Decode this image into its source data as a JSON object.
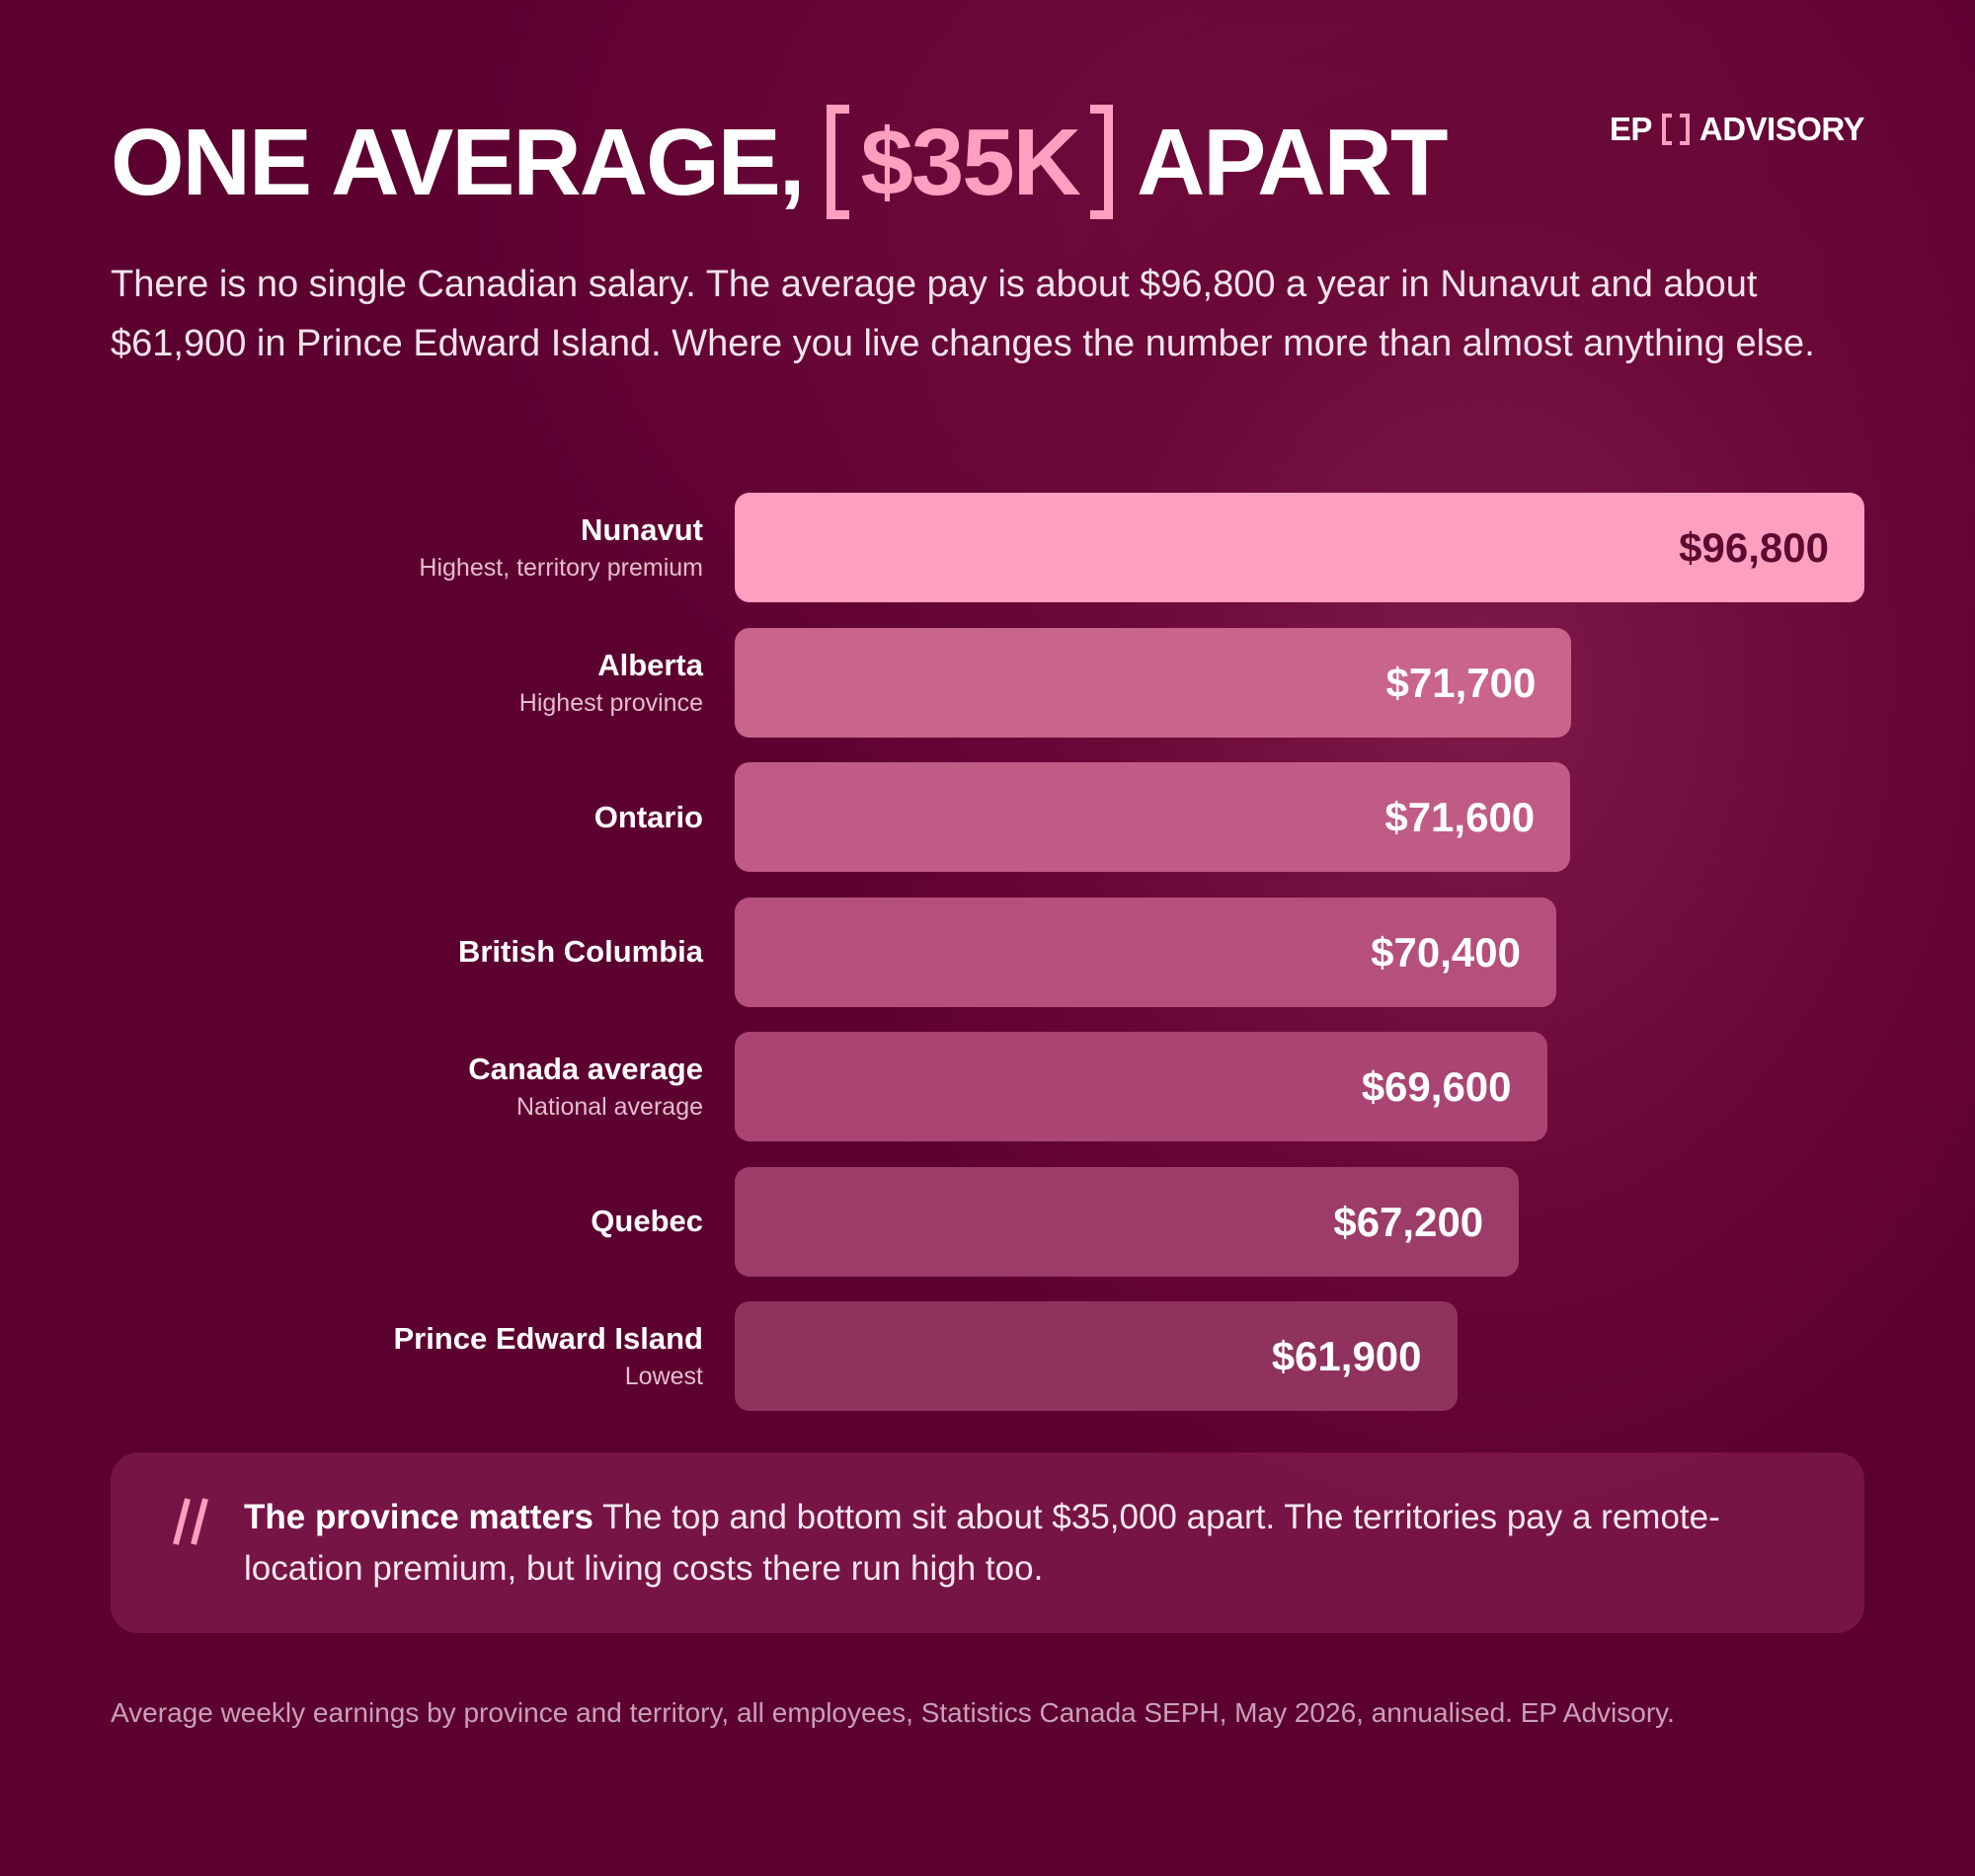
{
  "brand": {
    "left": "EP",
    "right": "ADVISORY"
  },
  "chart_data": {
    "type": "bar",
    "orientation": "horizontal",
    "title": {
      "before": "ONE AVERAGE,",
      "highlight": "$35K",
      "after": "APART"
    },
    "subtitle": "There is no single Canadian salary. The average pay is about $96,800 a year in Nunavut and about $61,900 in Prince Edward Island. Where you live changes the number more than almost anything else.",
    "categories": [
      "Nunavut",
      "Alberta",
      "Ontario",
      "British Columbia",
      "Canada average",
      "Quebec",
      "Prince Edward Island"
    ],
    "category_notes": [
      "Highest, territory premium",
      "Highest province",
      null,
      null,
      "National average",
      null,
      "Lowest"
    ],
    "values": [
      96800,
      71700,
      71600,
      70400,
      69600,
      67200,
      61900
    ],
    "value_labels": [
      "$96,800",
      "$71,700",
      "$71,600",
      "$70,400",
      "$69,600",
      "$67,200",
      "$61,900"
    ],
    "colors": [
      "#ff9fc0",
      "#c9648b",
      "#c05b85",
      "#b54f7c",
      "#aa4573",
      "#9d3c68",
      "#8f325d"
    ],
    "value_label_colors": [
      "#5c0a32",
      "#ffffff",
      "#ffffff",
      "#ffffff",
      "#ffffff",
      "#ffffff",
      "#ffffff"
    ],
    "annotation": {
      "heading": "The province matters",
      "text": "The top and bottom sit about $35,000 apart. The territories pay a remote-location premium, but living costs there run high too."
    },
    "source": "Average weekly earnings by province and territory, all employees, Statistics Canada SEPH, May 2026, annualised. EP Advisory."
  }
}
